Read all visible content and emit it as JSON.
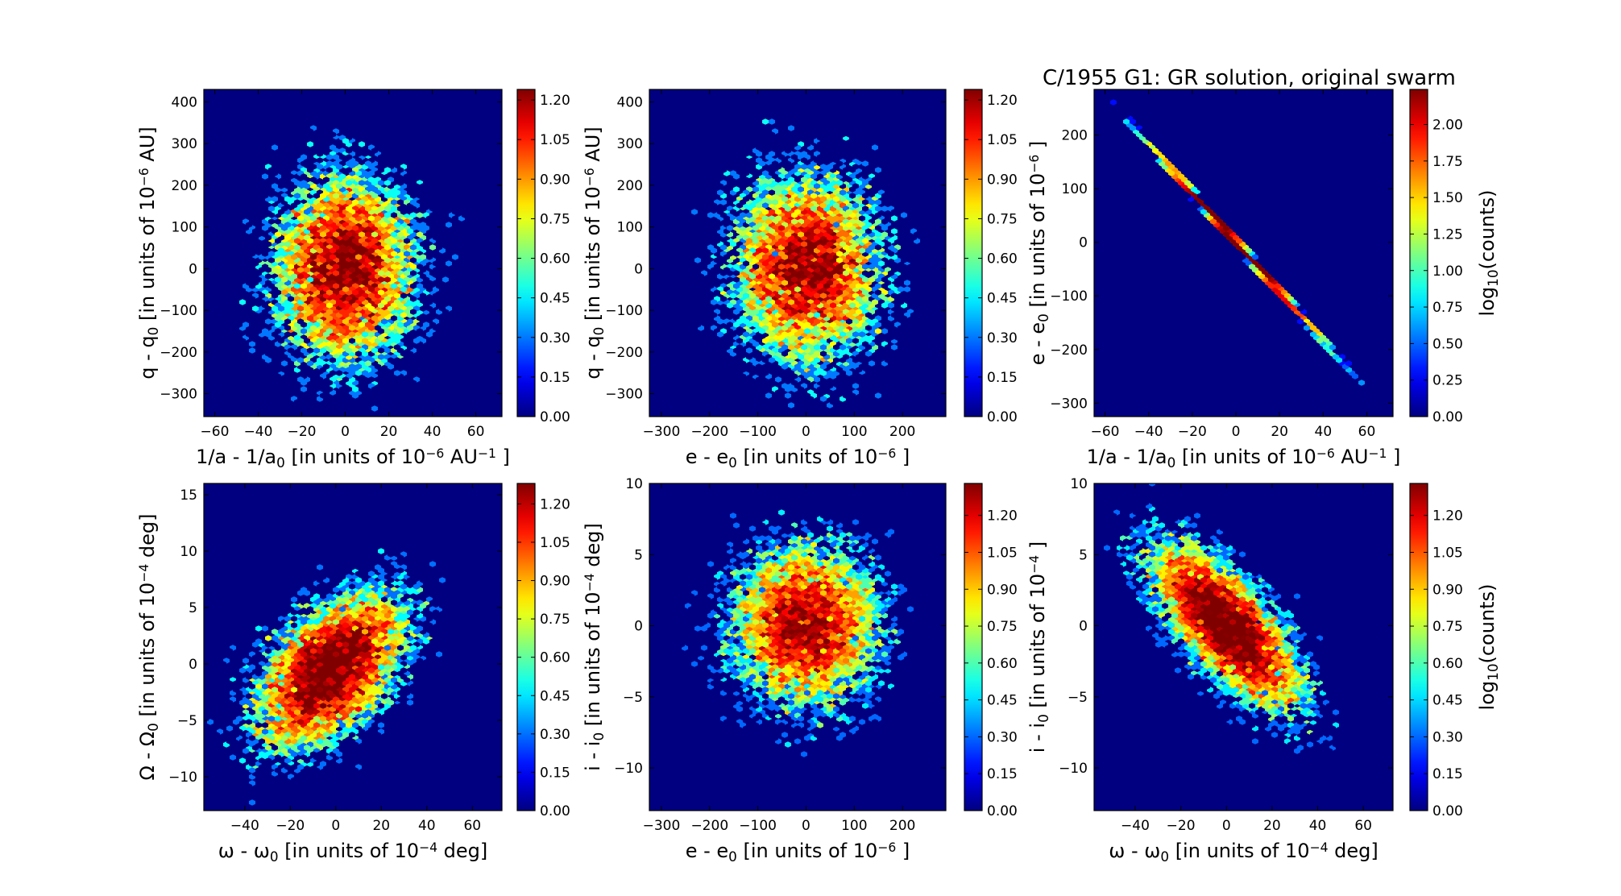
{
  "figure": {
    "title": "C/1955 G1:  GR solution, original swarm"
  },
  "chart_data": [
    {
      "type": "heatmap",
      "subtype": "hexbin",
      "xlabel": [
        {
          "t": "1/a - 1/a"
        },
        {
          "t": "0",
          "sub": true
        },
        {
          "t": " [in units of 10"
        },
        {
          "t": "−6",
          "sup": true
        },
        {
          "t": " AU"
        },
        {
          "t": "−1",
          "sup": true
        },
        {
          "t": " ]"
        }
      ],
      "ylabel": [
        {
          "t": "q - q"
        },
        {
          "t": "0",
          "sub": true
        },
        {
          "t": " [in units of 10"
        },
        {
          "t": "−6",
          "sup": true
        },
        {
          "t": " AU]"
        }
      ],
      "xlim": [
        -65,
        72
      ],
      "ylim": [
        -355,
        430
      ],
      "xticks": [
        "−60",
        "−40",
        "−20",
        "0",
        "20",
        "40",
        "60"
      ],
      "xtick_values": [
        -60,
        -40,
        -20,
        0,
        20,
        40,
        60
      ],
      "yticks": [
        "−300",
        "−200",
        "−100",
        "0",
        "100",
        "200",
        "300",
        "400"
      ],
      "ytick_values": [
        -300,
        -200,
        -100,
        0,
        100,
        200,
        300,
        400
      ],
      "colorbar": {
        "range": [
          0,
          1.24
        ],
        "ticks": [
          "0.00",
          "0.15",
          "0.30",
          "0.45",
          "0.60",
          "0.75",
          "0.90",
          "1.05",
          "1.20"
        ],
        "tick_values": [
          0,
          0.15,
          0.3,
          0.45,
          0.6,
          0.75,
          0.9,
          1.05,
          1.2
        ],
        "label": null
      },
      "distribution": {
        "n": 10000,
        "mean": [
          0,
          0
        ],
        "sd": [
          17,
          120
        ],
        "corr": 0.0,
        "seed": 11
      }
    },
    {
      "type": "heatmap",
      "subtype": "hexbin",
      "xlabel": [
        {
          "t": "e - e"
        },
        {
          "t": "0",
          "sub": true
        },
        {
          "t": " [in units of 10"
        },
        {
          "t": "−6",
          "sup": true
        },
        {
          "t": " ]"
        }
      ],
      "ylabel": [
        {
          "t": "q - q"
        },
        {
          "t": "0",
          "sub": true
        },
        {
          "t": " [in units of 10"
        },
        {
          "t": "−6",
          "sup": true
        },
        {
          "t": " AU]"
        }
      ],
      "xlim": [
        -325,
        290
      ],
      "ylim": [
        -355,
        430
      ],
      "xticks": [
        "−300",
        "−200",
        "−100",
        "0",
        "100",
        "200"
      ],
      "xtick_values": [
        -300,
        -200,
        -100,
        0,
        100,
        200
      ],
      "yticks": [
        "−300",
        "−200",
        "−100",
        "0",
        "100",
        "200",
        "300",
        "400"
      ],
      "ytick_values": [
        -300,
        -200,
        -100,
        0,
        100,
        200,
        300,
        400
      ],
      "colorbar": {
        "range": [
          0,
          1.24
        ],
        "ticks": [
          "0.00",
          "0.15",
          "0.30",
          "0.45",
          "0.60",
          "0.75",
          "0.90",
          "1.05",
          "1.20"
        ],
        "tick_values": [
          0,
          0.15,
          0.3,
          0.45,
          0.6,
          0.75,
          0.9,
          1.05,
          1.2
        ],
        "label": null
      },
      "distribution": {
        "n": 10000,
        "mean": [
          0,
          0
        ],
        "sd": [
          80,
          120
        ],
        "corr": 0.0,
        "seed": 23
      }
    },
    {
      "type": "heatmap",
      "subtype": "hexbin",
      "xlabel": [
        {
          "t": "1/a - 1/a"
        },
        {
          "t": "0",
          "sub": true
        },
        {
          "t": " [in units of 10"
        },
        {
          "t": "−6",
          "sup": true
        },
        {
          "t": " AU"
        },
        {
          "t": "−1",
          "sup": true
        },
        {
          "t": " ]"
        }
      ],
      "ylabel": [
        {
          "t": "e - e"
        },
        {
          "t": "0",
          "sub": true
        },
        {
          "t": " [in units of 10"
        },
        {
          "t": "−6",
          "sup": true
        },
        {
          "t": " ]"
        }
      ],
      "xlim": [
        -65,
        72
      ],
      "ylim": [
        -325,
        285
      ],
      "xticks": [
        "−60",
        "−40",
        "−20",
        "0",
        "20",
        "40",
        "60"
      ],
      "xtick_values": [
        -60,
        -40,
        -20,
        0,
        20,
        40,
        60
      ],
      "yticks": [
        "−300",
        "−200",
        "−100",
        "0",
        "100",
        "200"
      ],
      "ytick_values": [
        -300,
        -200,
        -100,
        0,
        100,
        200
      ],
      "colorbar": {
        "range": [
          0,
          2.24
        ],
        "ticks": [
          "0.00",
          "0.25",
          "0.50",
          "0.75",
          "1.00",
          "1.25",
          "1.50",
          "1.75",
          "2.00"
        ],
        "tick_values": [
          0,
          0.25,
          0.5,
          0.75,
          1,
          1.25,
          1.5,
          1.75,
          2
        ],
        "label": [
          {
            "t": "log"
          },
          {
            "t": "10",
            "sub": true
          },
          {
            "t": "(counts)"
          }
        ]
      },
      "distribution": {
        "n": 10000,
        "mean": [
          0,
          0
        ],
        "sd": [
          17,
          78
        ],
        "corr": -0.9995,
        "seed": 37
      }
    },
    {
      "type": "heatmap",
      "subtype": "hexbin",
      "xlabel": [
        {
          "t": "ω - ω"
        },
        {
          "t": "0",
          "sub": true
        },
        {
          "t": " [in units of 10"
        },
        {
          "t": "−4",
          "sup": true
        },
        {
          "t": " deg]"
        }
      ],
      "ylabel": [
        {
          "t": "Ω - Ω"
        },
        {
          "t": "0",
          "sub": true
        },
        {
          "t": " [in units of 10"
        },
        {
          "t": "−4",
          "sup": true
        },
        {
          "t": " deg]"
        }
      ],
      "xlim": [
        -58,
        73
      ],
      "ylim": [
        -13,
        16
      ],
      "xticks": [
        "−40",
        "−20",
        "0",
        "20",
        "40",
        "60"
      ],
      "xtick_values": [
        -40,
        -20,
        0,
        20,
        40,
        60
      ],
      "yticks": [
        "−10",
        "−5",
        "0",
        "5",
        "10",
        "15"
      ],
      "ytick_values": [
        -10,
        -5,
        0,
        5,
        10,
        15
      ],
      "colorbar": {
        "range": [
          0,
          1.28
        ],
        "ticks": [
          "0.00",
          "0.15",
          "0.30",
          "0.45",
          "0.60",
          "0.75",
          "0.90",
          "1.05",
          "1.20"
        ],
        "tick_values": [
          0,
          0.15,
          0.3,
          0.45,
          0.6,
          0.75,
          0.9,
          1.05,
          1.2
        ],
        "label": null
      },
      "distribution": {
        "n": 10000,
        "mean": [
          -2,
          -0.5
        ],
        "sd": [
          17,
          3.6
        ],
        "corr": 0.5,
        "seed": 41
      }
    },
    {
      "type": "heatmap",
      "subtype": "hexbin",
      "xlabel": [
        {
          "t": "e - e"
        },
        {
          "t": "0",
          "sub": true
        },
        {
          "t": " [in units of 10"
        },
        {
          "t": "−6",
          "sup": true
        },
        {
          "t": " ]"
        }
      ],
      "ylabel": [
        {
          "t": "i - i"
        },
        {
          "t": "0",
          "sub": true
        },
        {
          "t": " [in units of 10"
        },
        {
          "t": "−4",
          "sup": true
        },
        {
          "t": " deg]"
        }
      ],
      "xlim": [
        -325,
        290
      ],
      "ylim": [
        -13,
        10
      ],
      "xticks": [
        "−300",
        "−200",
        "−100",
        "0",
        "100",
        "200"
      ],
      "xtick_values": [
        -300,
        -200,
        -100,
        0,
        100,
        200
      ],
      "yticks": [
        "−10",
        "−5",
        "0",
        "5",
        "10"
      ],
      "ytick_values": [
        -10,
        -5,
        0,
        5,
        10
      ],
      "colorbar": {
        "range": [
          0,
          1.33
        ],
        "ticks": [
          "0.00",
          "0.15",
          "0.30",
          "0.45",
          "0.60",
          "0.75",
          "0.90",
          "1.05",
          "1.20"
        ],
        "tick_values": [
          0,
          0.15,
          0.3,
          0.45,
          0.6,
          0.75,
          0.9,
          1.05,
          1.2
        ],
        "label": null
      },
      "distribution": {
        "n": 10000,
        "mean": [
          0,
          0
        ],
        "sd": [
          80,
          3.0
        ],
        "corr": 0.0,
        "seed": 53
      }
    },
    {
      "type": "heatmap",
      "subtype": "hexbin",
      "xlabel": [
        {
          "t": "ω - ω"
        },
        {
          "t": "0",
          "sub": true
        },
        {
          "t": " [in units of 10"
        },
        {
          "t": "−4",
          "sup": true
        },
        {
          "t": " deg]"
        }
      ],
      "ylabel": [
        {
          "t": "i - i"
        },
        {
          "t": "0",
          "sub": true
        },
        {
          "t": " [in units of 10"
        },
        {
          "t": "−4",
          "sup": true
        },
        {
          "t": " ]"
        }
      ],
      "xlim": [
        -58,
        73
      ],
      "ylim": [
        -13,
        10
      ],
      "xticks": [
        "−40",
        "−20",
        "0",
        "20",
        "40",
        "60"
      ],
      "xtick_values": [
        -40,
        -20,
        0,
        20,
        40,
        60
      ],
      "yticks": [
        "−10",
        "−5",
        "0",
        "5",
        "10"
      ],
      "ytick_values": [
        -10,
        -5,
        0,
        5,
        10
      ],
      "colorbar": {
        "range": [
          0,
          1.33
        ],
        "ticks": [
          "0.00",
          "0.15",
          "0.30",
          "0.45",
          "0.60",
          "0.75",
          "0.90",
          "1.05",
          "1.20"
        ],
        "tick_values": [
          0,
          0.15,
          0.3,
          0.45,
          0.6,
          0.75,
          0.9,
          1.05,
          1.2
        ],
        "label": [
          {
            "t": "log"
          },
          {
            "t": "10",
            "sub": true
          },
          {
            "t": "(counts)"
          }
        ]
      },
      "distribution": {
        "n": 10000,
        "mean": [
          0,
          0
        ],
        "sd": [
          17,
          3.0
        ],
        "corr": -0.7,
        "seed": 67
      }
    }
  ]
}
